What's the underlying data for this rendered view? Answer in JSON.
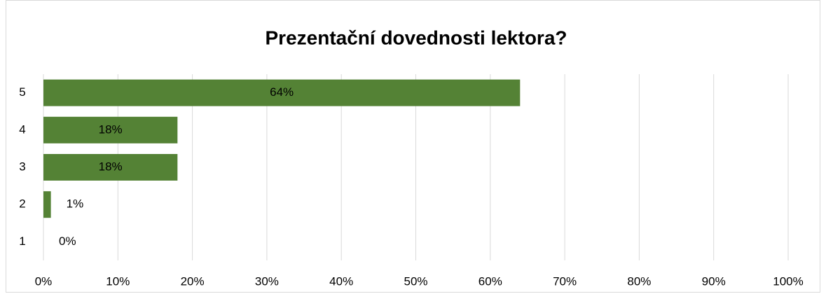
{
  "chart_data": {
    "type": "bar",
    "orientation": "horizontal",
    "title": "Prezentační dovednosti lektora?",
    "categories": [
      "5",
      "4",
      "3",
      "2",
      "1"
    ],
    "values": [
      64,
      18,
      18,
      1,
      0
    ],
    "value_labels": [
      "64%",
      "18%",
      "18%",
      "1%",
      "0%"
    ],
    "color": "#548235",
    "xlim": [
      0,
      100
    ],
    "xticks": [
      {
        "value": 0,
        "label": "0%"
      },
      {
        "value": 10,
        "label": "10%"
      },
      {
        "value": 20,
        "label": "20%"
      },
      {
        "value": 30,
        "label": "30%"
      },
      {
        "value": 40,
        "label": "40%"
      },
      {
        "value": 50,
        "label": "50%"
      },
      {
        "value": 60,
        "label": "60%"
      },
      {
        "value": 70,
        "label": "70%"
      },
      {
        "value": 80,
        "label": "80%"
      },
      {
        "value": 90,
        "label": "90%"
      },
      {
        "value": 100,
        "label": "100%"
      }
    ],
    "grid": true
  }
}
